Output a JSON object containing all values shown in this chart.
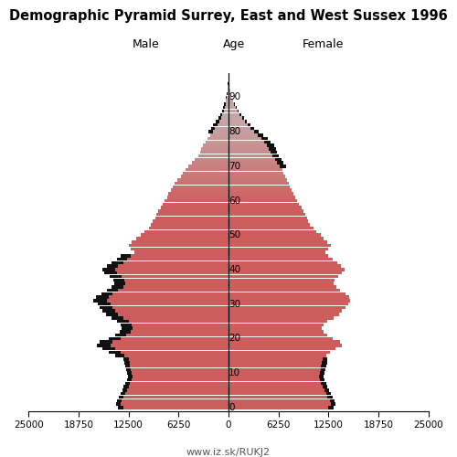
{
  "title": "Demographic Pyramid Surrey, East and West Sussex 1996",
  "label_male": "Male",
  "label_female": "Female",
  "label_age": "Age",
  "footer": "www.iz.sk/RUKJ2",
  "color_main": "#cd5c5c",
  "color_old": "#c4a4a4",
  "color_black": "#111111",
  "ages": [
    0,
    1,
    2,
    3,
    4,
    5,
    6,
    7,
    8,
    9,
    10,
    11,
    12,
    13,
    14,
    15,
    16,
    17,
    18,
    19,
    20,
    21,
    22,
    23,
    24,
    25,
    26,
    27,
    28,
    29,
    30,
    31,
    32,
    33,
    34,
    35,
    36,
    37,
    38,
    39,
    40,
    41,
    42,
    43,
    44,
    45,
    46,
    47,
    48,
    49,
    50,
    51,
    52,
    53,
    54,
    55,
    56,
    57,
    58,
    59,
    60,
    61,
    62,
    63,
    64,
    65,
    66,
    67,
    68,
    69,
    70,
    71,
    72,
    73,
    74,
    75,
    76,
    77,
    78,
    79,
    80,
    81,
    82,
    83,
    84,
    85,
    86,
    87,
    88,
    89,
    90,
    91,
    92,
    93,
    94
  ],
  "male": [
    13200,
    13500,
    13400,
    13100,
    12900,
    12700,
    12500,
    12300,
    12100,
    12000,
    12100,
    12200,
    12350,
    12400,
    12500,
    13000,
    13500,
    14200,
    14800,
    14500,
    13500,
    12800,
    12200,
    12000,
    12100,
    12500,
    13200,
    13800,
    14200,
    14500,
    14800,
    15200,
    15000,
    14500,
    13800,
    13200,
    12900,
    13000,
    13400,
    14000,
    14200,
    13800,
    13200,
    12700,
    12200,
    11800,
    12200,
    12500,
    12100,
    11500,
    11000,
    10500,
    10000,
    9700,
    9500,
    9200,
    9000,
    8800,
    8500,
    8200,
    8000,
    7700,
    7500,
    7200,
    7000,
    6700,
    6400,
    6000,
    5700,
    5400,
    5000,
    4600,
    4200,
    3800,
    3600,
    3400,
    3200,
    2900,
    2600,
    2300,
    2000,
    1700,
    1400,
    1150,
    950,
    750,
    600,
    490,
    380,
    290,
    220,
    160,
    110,
    80,
    50
  ],
  "female": [
    12500,
    12800,
    12700,
    12400,
    12200,
    12000,
    11800,
    11600,
    11400,
    11300,
    11400,
    11500,
    11600,
    11700,
    11800,
    12200,
    12700,
    13400,
    14200,
    13900,
    13000,
    12400,
    11900,
    11700,
    11900,
    12400,
    13100,
    13800,
    14200,
    14600,
    15000,
    15200,
    15100,
    14600,
    14000,
    13500,
    13200,
    13300,
    13700,
    14200,
    14500,
    14100,
    13600,
    13000,
    12500,
    12100,
    12500,
    12800,
    12400,
    11900,
    11500,
    11000,
    10600,
    10200,
    10000,
    9800,
    9600,
    9400,
    9100,
    8800,
    8600,
    8300,
    8100,
    7900,
    7700,
    7500,
    7300,
    7100,
    6900,
    6700,
    6400,
    6100,
    5800,
    5500,
    5300,
    5000,
    4800,
    4500,
    4100,
    3700,
    3200,
    2800,
    2400,
    2050,
    1700,
    1400,
    1100,
    880,
    680,
    520,
    380,
    270,
    185,
    125,
    80
  ],
  "male_black": [
    13800,
    14100,
    14000,
    13700,
    13500,
    13300,
    13100,
    12900,
    12700,
    12600,
    12700,
    12800,
    12900,
    13000,
    13100,
    14200,
    15000,
    15800,
    16500,
    16100,
    15000,
    14200,
    13600,
    13400,
    13500,
    13900,
    14600,
    15300,
    15800,
    16100,
    16400,
    16900,
    16600,
    15900,
    15200,
    14600,
    14300,
    14400,
    14900,
    15500,
    15800,
    15200,
    14600,
    13900,
    13500,
    11800,
    12200,
    12500,
    12100,
    11500,
    11000,
    10500,
    10000,
    9700,
    9500,
    9200,
    9000,
    8800,
    8500,
    8200,
    8000,
    7700,
    7500,
    7200,
    7000,
    6700,
    6400,
    6000,
    5700,
    5400,
    5000,
    4600,
    4200,
    3800,
    3600,
    3400,
    3200,
    2900,
    2600,
    2300,
    2500,
    2200,
    1900,
    1600,
    1300,
    1050,
    850,
    680,
    530,
    400,
    290,
    200,
    140,
    95,
    60
  ],
  "female_black": [
    13100,
    13400,
    13300,
    13000,
    12800,
    12600,
    12400,
    12200,
    12000,
    11900,
    12000,
    12100,
    12200,
    12300,
    12400,
    12200,
    12700,
    13400,
    14200,
    13900,
    13000,
    12400,
    11900,
    11700,
    11900,
    12400,
    13100,
    13800,
    14200,
    14600,
    15000,
    15200,
    15100,
    14600,
    14000,
    13500,
    13200,
    13300,
    13700,
    14200,
    14500,
    14100,
    13600,
    13000,
    12500,
    12100,
    12500,
    12800,
    12400,
    11900,
    11500,
    11000,
    10600,
    10200,
    10000,
    9800,
    9600,
    9400,
    9100,
    8800,
    8600,
    8300,
    8100,
    7900,
    7700,
    7500,
    7300,
    7100,
    6900,
    6700,
    7200,
    6900,
    6600,
    6300,
    6100,
    5900,
    5700,
    5300,
    4900,
    4300,
    3800,
    3200,
    2750,
    2300,
    1950,
    1600,
    1280,
    1000,
    760,
    560,
    390,
    270,
    185,
    125,
    80
  ]
}
